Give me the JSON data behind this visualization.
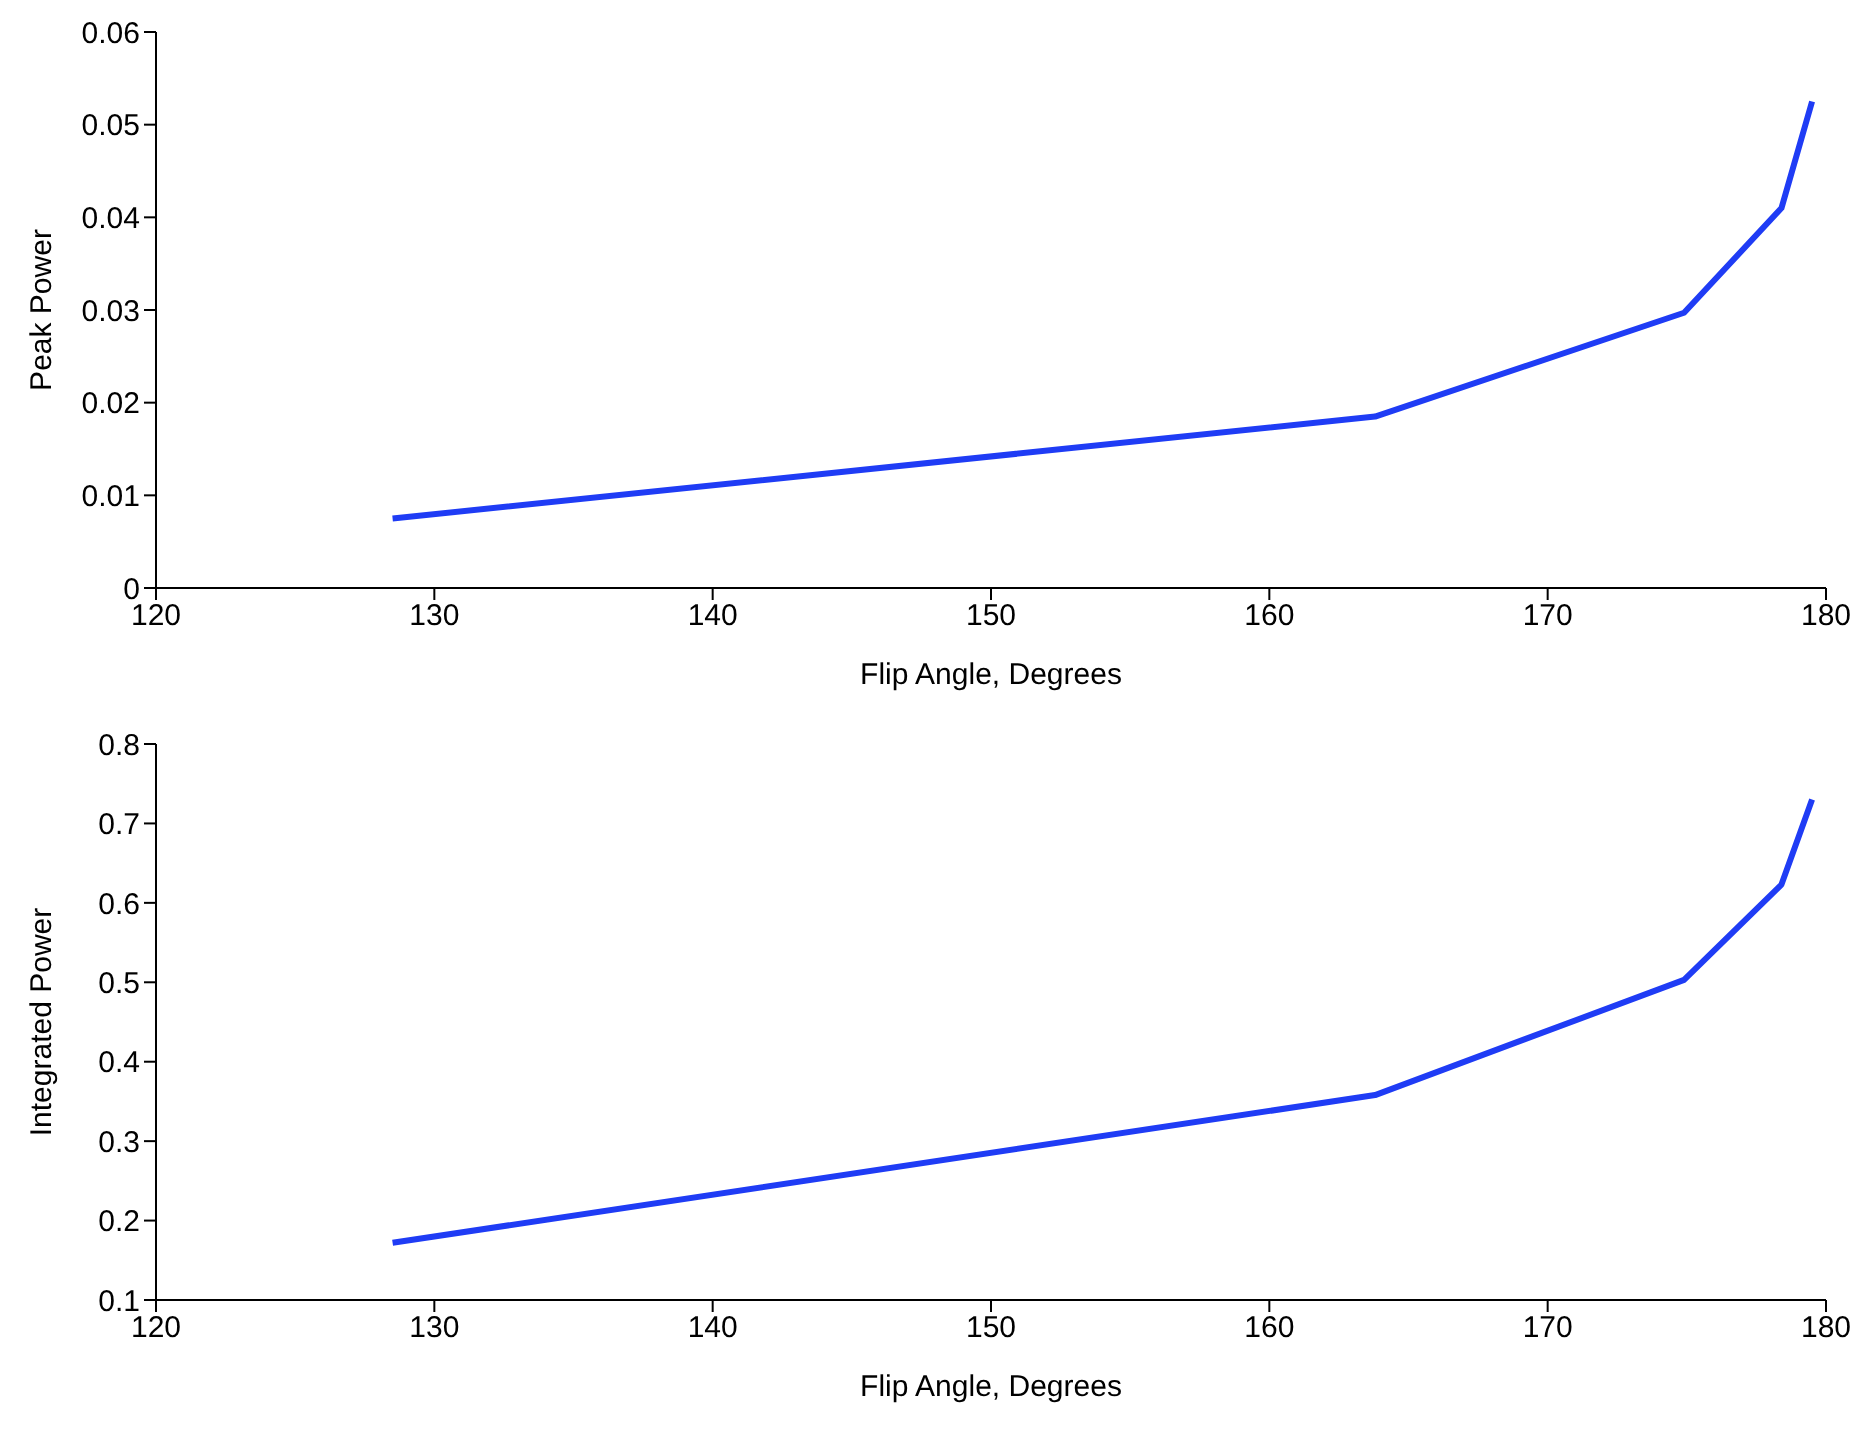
{
  "chart_data": [
    {
      "type": "line",
      "xlabel": "Flip Angle, Degrees",
      "ylabel": "Peak Power",
      "x": [
        128.5,
        163.8,
        174.9,
        178.4,
        179.5
      ],
      "series": [
        {
          "color": "#1f3cf5",
          "values": [
            0.0075,
            0.0185,
            0.0297,
            0.041,
            0.0525
          ]
        }
      ],
      "xlim": [
        120,
        180
      ],
      "xticks": [
        120,
        130,
        140,
        150,
        160,
        170,
        180
      ],
      "ylim": [
        0,
        0.06
      ],
      "yticks": [
        0,
        0.01,
        0.02,
        0.03,
        0.04,
        0.05,
        0.06
      ],
      "grid": false,
      "legend": false,
      "marker": "none",
      "line_style": "solid"
    },
    {
      "type": "line",
      "xlabel": "Flip Angle, Degrees",
      "ylabel": "Integrated Power",
      "x": [
        128.5,
        163.8,
        174.9,
        178.4,
        179.5
      ],
      "series": [
        {
          "color": "#1f3cf5",
          "values": [
            0.172,
            0.358,
            0.503,
            0.623,
            0.73
          ]
        }
      ],
      "xlim": [
        120,
        180
      ],
      "xticks": [
        120,
        130,
        140,
        150,
        160,
        170,
        180
      ],
      "ylim": [
        0.1,
        0.8
      ],
      "yticks": [
        0.1,
        0.2,
        0.3,
        0.4,
        0.5,
        0.6,
        0.7,
        0.8
      ],
      "grid": false,
      "legend": false,
      "marker": "none",
      "line_style": "solid"
    }
  ]
}
